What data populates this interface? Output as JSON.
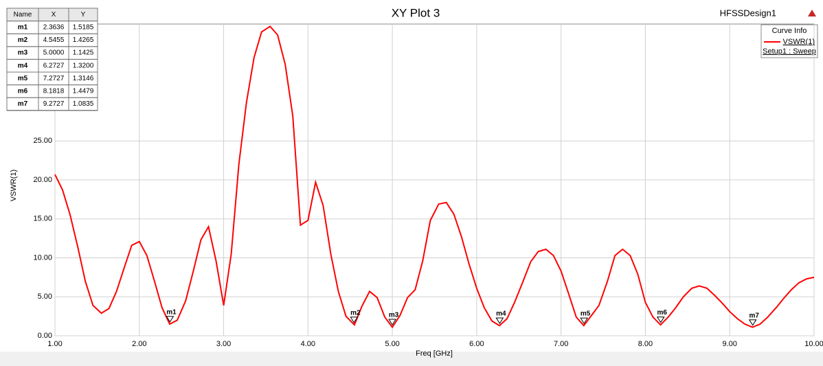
{
  "chart_data": {
    "type": "line",
    "title": "XY Plot 3",
    "design": "HFSSDesign1",
    "x_label": "Freq [GHz]",
    "y_label": "VSWR(1)",
    "legend_title": "Curve Info",
    "legend_subtitle": "Setup1 : Sweep",
    "series": [
      {
        "name": "VSWR(1)",
        "color": "#ff0000",
        "x": [
          1.0,
          1.09,
          1.18,
          1.27,
          1.36,
          1.45,
          1.55,
          1.64,
          1.73,
          1.82,
          1.91,
          2.0,
          2.09,
          2.18,
          2.27,
          2.36,
          2.45,
          2.55,
          2.64,
          2.73,
          2.82,
          2.91,
          3.0,
          3.09,
          3.18,
          3.27,
          3.36,
          3.45,
          3.55,
          3.64,
          3.73,
          3.82,
          3.91,
          4.0,
          4.09,
          4.18,
          4.27,
          4.36,
          4.45,
          4.55,
          4.64,
          4.73,
          4.82,
          4.91,
          5.0,
          5.09,
          5.18,
          5.27,
          5.36,
          5.45,
          5.55,
          5.64,
          5.73,
          5.82,
          5.91,
          6.0,
          6.09,
          6.18,
          6.27,
          6.36,
          6.45,
          6.55,
          6.64,
          6.73,
          6.82,
          6.91,
          7.0,
          7.09,
          7.18,
          7.27,
          7.36,
          7.45,
          7.55,
          7.64,
          7.73,
          7.82,
          7.91,
          8.0,
          8.09,
          8.18,
          8.27,
          8.36,
          8.45,
          8.55,
          8.64,
          8.73,
          8.82,
          8.91,
          9.0,
          9.09,
          9.18,
          9.27,
          9.36,
          9.45,
          9.55,
          9.64,
          9.73,
          9.82,
          9.91,
          10.0
        ],
        "values": [
          20.7,
          18.7,
          15.5,
          11.4,
          7.0,
          3.9,
          2.9,
          3.5,
          5.7,
          8.7,
          11.6,
          12.1,
          10.3,
          7.0,
          3.6,
          1.5,
          2.0,
          4.5,
          8.3,
          12.3,
          14.0,
          9.6,
          3.9,
          10.5,
          22.0,
          29.9,
          35.7,
          39.0,
          39.7,
          38.6,
          34.8,
          28.2,
          14.2,
          14.8,
          19.7,
          16.7,
          10.5,
          5.7,
          2.5,
          1.4,
          3.8,
          5.7,
          4.9,
          2.4,
          1.1,
          2.6,
          4.9,
          5.9,
          9.6,
          14.8,
          16.9,
          17.1,
          15.6,
          12.7,
          9.2,
          6.1,
          3.6,
          1.9,
          1.3,
          2.2,
          4.3,
          7.0,
          9.5,
          10.8,
          11.1,
          10.3,
          8.3,
          5.4,
          2.4,
          1.3,
          2.6,
          3.9,
          7.0,
          10.3,
          11.1,
          10.3,
          7.9,
          4.3,
          2.4,
          1.4,
          2.4,
          3.6,
          5.0,
          6.1,
          6.4,
          6.1,
          5.2,
          4.2,
          3.1,
          2.2,
          1.5,
          1.1,
          1.5,
          2.4,
          3.6,
          4.8,
          5.9,
          6.8,
          7.3,
          7.5
        ]
      }
    ],
    "xlim": [
      1,
      10
    ],
    "ylim": [
      0,
      40
    ],
    "xticks": [
      {
        "value": 1,
        "label": "1.00"
      },
      {
        "value": 2,
        "label": "2.00"
      },
      {
        "value": 3,
        "label": "3.00"
      },
      {
        "value": 4,
        "label": "4.00"
      },
      {
        "value": 5,
        "label": "5.00"
      },
      {
        "value": 6,
        "label": "6.00"
      },
      {
        "value": 7,
        "label": "7.00"
      },
      {
        "value": 8,
        "label": "8.00"
      },
      {
        "value": 9,
        "label": "9.00"
      },
      {
        "value": 10,
        "label": "10.00"
      }
    ],
    "yticks": [
      {
        "value": 0,
        "label": "0.00"
      },
      {
        "value": 5,
        "label": "5.00"
      },
      {
        "value": 10,
        "label": "10.00"
      },
      {
        "value": 15,
        "label": "15.00"
      },
      {
        "value": 20,
        "label": "20.00"
      },
      {
        "value": 25,
        "label": "25.00"
      }
    ],
    "grid": true,
    "marker_table_headers": [
      "Name",
      "X",
      "Y"
    ],
    "markers": [
      {
        "name": "m1",
        "x": 2.3636,
        "y": 1.5185,
        "x_label": "2.3636",
        "y_label": "1.5185"
      },
      {
        "name": "m2",
        "x": 4.5455,
        "y": 1.4265,
        "x_label": "4.5455",
        "y_label": "1.4265"
      },
      {
        "name": "m3",
        "x": 5,
        "y": 1.1425,
        "x_label": "5.0000",
        "y_label": "1.1425"
      },
      {
        "name": "m4",
        "x": 6.2727,
        "y": 1.32,
        "x_label": "6.2727",
        "y_label": "1.3200"
      },
      {
        "name": "m5",
        "x": 7.2727,
        "y": 1.3146,
        "x_label": "7.2727",
        "y_label": "1.3146"
      },
      {
        "name": "m6",
        "x": 8.1818,
        "y": 1.4479,
        "x_label": "8.1818",
        "y_label": "1.4479"
      },
      {
        "name": "m7",
        "x": 9.2727,
        "y": 1.0835,
        "x_label": "9.2727",
        "y_label": "1.0835"
      }
    ]
  }
}
